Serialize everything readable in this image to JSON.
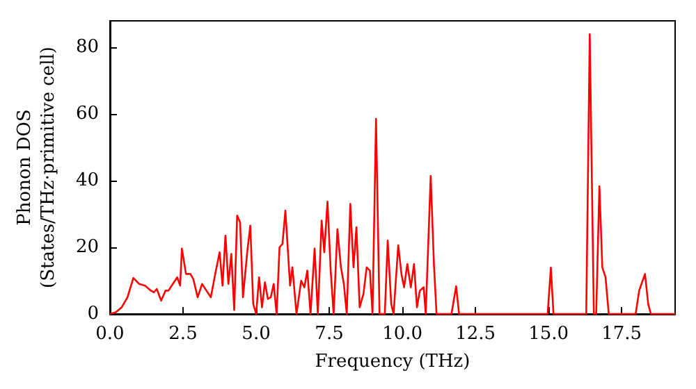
{
  "chart_data": {
    "type": "line",
    "xlabel": "Frequency (THz)",
    "ylabel": "Phonon DOS\n(States/THz·primitive cell)",
    "x": [
      0,
      0.2,
      0.4,
      0.6,
      0.8,
      1.0,
      1.2,
      1.4,
      1.5,
      1.6,
      1.75,
      1.9,
      2.0,
      2.15,
      2.3,
      2.4,
      2.46,
      2.6,
      2.75,
      2.85,
      3.0,
      3.15,
      3.3,
      3.45,
      3.6,
      3.75,
      3.85,
      3.95,
      4.05,
      4.15,
      4.25,
      4.35,
      4.45,
      4.55,
      4.7,
      4.8,
      4.9,
      5.0,
      5.1,
      5.2,
      5.3,
      5.4,
      5.5,
      5.6,
      5.7,
      5.8,
      5.9,
      6.0,
      6.16,
      6.24,
      6.38,
      6.54,
      6.65,
      6.75,
      6.86,
      7.0,
      7.11,
      7.24,
      7.33,
      7.44,
      7.55,
      7.65,
      7.78,
      7.9,
      8.0,
      8.1,
      8.22,
      8.33,
      8.43,
      8.54,
      8.67,
      8.78,
      8.89,
      8.98,
      9.1,
      9.22,
      9.4,
      9.5,
      9.62,
      9.7,
      9.86,
      9.97,
      10.06,
      10.17,
      10.29,
      10.4,
      10.5,
      10.6,
      10.73,
      10.8,
      10.97,
      11.08,
      11.17,
      11.68,
      11.84,
      11.94,
      14.97,
      15.08,
      15.17,
      16.29,
      16.41,
      16.55,
      16.63,
      16.74,
      16.84,
      16.95,
      17.06,
      17.98,
      18.1,
      18.3,
      18.41,
      18.5,
      19.33
    ],
    "series": [
      {
        "color": "#ff0000",
        "values": [
          0,
          0.5,
          2,
          5,
          10.8,
          9,
          8.5,
          7,
          6.5,
          7.5,
          4,
          7,
          7,
          9,
          11,
          8.5,
          19.6,
          12,
          12,
          10.5,
          5,
          9,
          7,
          5,
          12,
          18.5,
          8.5,
          23.5,
          9,
          18,
          1.2,
          29.5,
          27.5,
          5,
          19,
          26.5,
          3,
          0,
          11,
          2,
          9.5,
          4.5,
          5,
          9,
          0,
          20,
          21,
          31,
          8.5,
          14,
          0,
          10,
          8,
          13,
          0,
          19.6,
          0,
          28,
          18.5,
          33.7,
          13,
          0,
          25.4,
          14,
          9,
          0,
          33,
          14,
          26,
          2,
          6,
          14,
          13,
          0,
          58.5,
          0,
          0,
          22,
          3,
          0,
          20.6,
          12,
          8,
          15,
          8,
          15,
          2,
          7,
          8,
          0,
          41.4,
          15,
          0,
          0,
          8.3,
          0,
          0,
          13.9,
          0,
          0,
          83.9,
          0,
          0,
          38.3,
          14,
          11,
          0,
          0,
          7,
          12,
          3,
          0,
          0
        ]
      }
    ],
    "xlim": [
      0,
      19.33
    ],
    "ylim": [
      0,
      87.9
    ],
    "xticks": [
      {
        "value": 0,
        "label": "0.0"
      },
      {
        "value": 2.5,
        "label": "2.5"
      },
      {
        "value": 5,
        "label": "5.0"
      },
      {
        "value": 7.5,
        "label": "7.5"
      },
      {
        "value": 10,
        "label": "10.0"
      },
      {
        "value": 12.5,
        "label": "12.5"
      },
      {
        "value": 15,
        "label": "15.0"
      },
      {
        "value": 17.5,
        "label": "17.5"
      }
    ],
    "yticks": [
      0,
      20,
      40,
      60,
      80
    ],
    "grid": false,
    "marker": "none",
    "line_style": "solid"
  }
}
